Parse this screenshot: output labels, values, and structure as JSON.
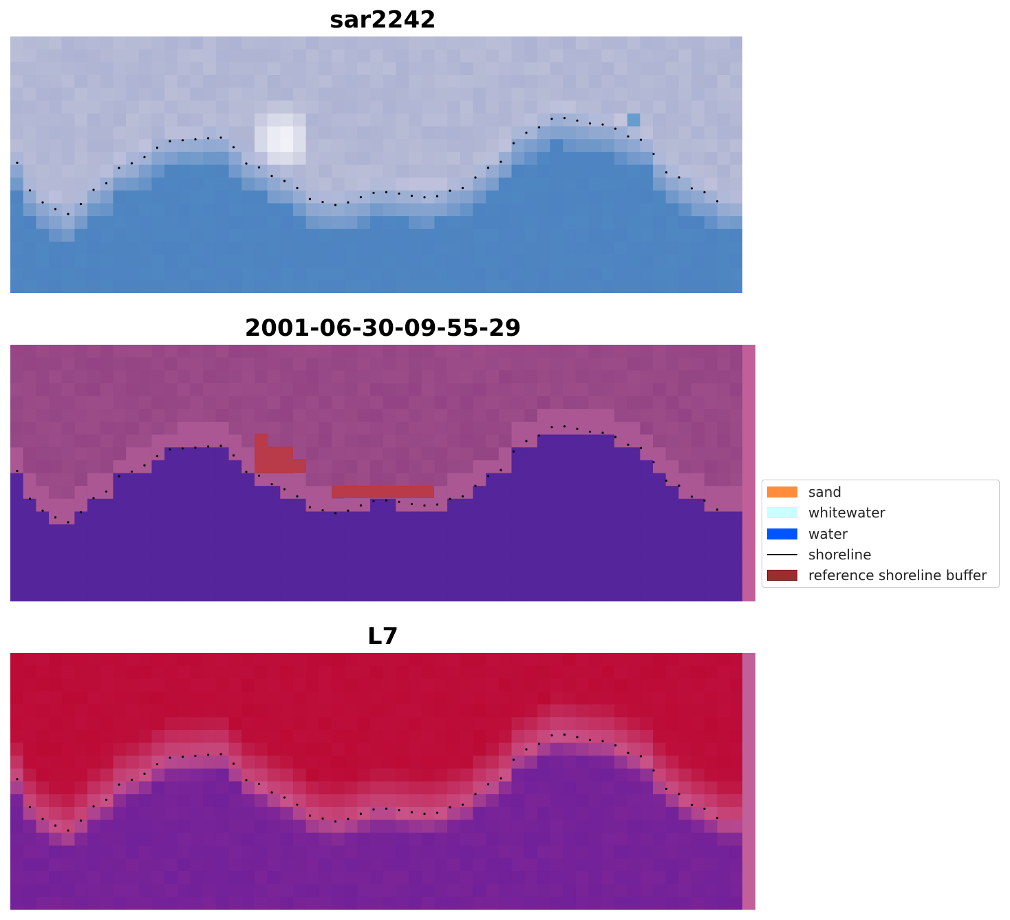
{
  "panels": [
    {
      "title": "sar2242",
      "style": "rgb"
    },
    {
      "title": "2001-06-30-09-55-29",
      "style": "classified"
    },
    {
      "title": "L7",
      "style": "index"
    }
  ],
  "legend": {
    "items": [
      {
        "label": "sand",
        "color": "#ff8c3a",
        "kind": "patch"
      },
      {
        "label": "whitewater",
        "color": "#c8ffff",
        "kind": "patch"
      },
      {
        "label": "water",
        "color": "#0055ff",
        "kind": "patch"
      },
      {
        "label": "shoreline",
        "color": "#000000",
        "kind": "line"
      },
      {
        "label": "reference shoreline buffer",
        "color": "#9b2d2d",
        "kind": "patch"
      }
    ]
  },
  "colors": {
    "rgb_land": "#b9bdd6",
    "rgb_water": "#4f87c2",
    "rgb_whitecap": "#ffffff",
    "class_land": "#9c4d89",
    "class_water": "#55259b",
    "class_buffer": "#b93a48",
    "index_land": "#bb0b35",
    "index_transition": "#c9548a",
    "index_water": "#7a2498",
    "side_strip": "#c05f98",
    "shoreline_dots": "#000000"
  }
}
